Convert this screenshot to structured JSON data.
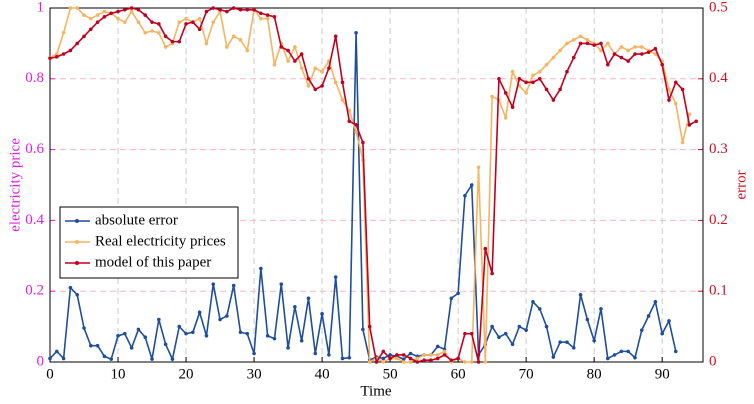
{
  "chart_data": {
    "type": "line",
    "x_label": "Time",
    "y_label": "electricity price",
    "y2_label": "error",
    "x": [
      0,
      1,
      2,
      3,
      4,
      5,
      6,
      7,
      8,
      9,
      10,
      11,
      12,
      13,
      14,
      15,
      16,
      17,
      18,
      19,
      20,
      21,
      22,
      23,
      24,
      25,
      26,
      27,
      28,
      29,
      30,
      31,
      32,
      33,
      34,
      35,
      36,
      37,
      38,
      39,
      40,
      41,
      42,
      43,
      44,
      45,
      46,
      47,
      48,
      49,
      50,
      51,
      52,
      53,
      54,
      55,
      56,
      57,
      58,
      59,
      60,
      61,
      62,
      63,
      64,
      65,
      66,
      67,
      68,
      69,
      70,
      71,
      72,
      73,
      74,
      75,
      76,
      77,
      78,
      79,
      80,
      81,
      82,
      83,
      84,
      85,
      86,
      87,
      88,
      89,
      90,
      91,
      92,
      93,
      94,
      95
    ],
    "xlim": [
      0,
      96
    ],
    "xticks": [
      0,
      10,
      20,
      30,
      40,
      50,
      60,
      70,
      80,
      90
    ],
    "ylim": [
      0,
      1
    ],
    "yticks": [
      0,
      0.2,
      0.4,
      0.6,
      0.8,
      1
    ],
    "y2lim": [
      0,
      0.5
    ],
    "y2ticks": [
      0,
      0.1,
      0.2,
      0.3,
      0.4,
      0.5
    ],
    "grid": true,
    "legend": "center left",
    "series": [
      {
        "name": "absolute error",
        "color": "#1f4e9c",
        "axis": "y2",
        "values": [
          0.005,
          0.015,
          0.005,
          0.105,
          0.095,
          0.048,
          0.023,
          0.023,
          0.008,
          0.004,
          0.037,
          0.04,
          0.02,
          0.046,
          0.035,
          0.004,
          0.06,
          0.025,
          0.004,
          0.05,
          0.04,
          0.042,
          0.07,
          0.037,
          0.11,
          0.06,
          0.065,
          0.108,
          0.042,
          0.04,
          0.012,
          0.132,
          0.037,
          0.033,
          0.11,
          0.02,
          0.078,
          0.03,
          0.09,
          0.012,
          0.068,
          0.01,
          0.12,
          0.005,
          0.006,
          0.465,
          0.046,
          0.003,
          0.007,
          0.005,
          0.01,
          0.008,
          0.004,
          0.012,
          0.008,
          0.01,
          0.01,
          0.022,
          0.018,
          0.09,
          0.097,
          0.235,
          0.25,
          0.01,
          0.025,
          0.05,
          0.035,
          0.04,
          0.025,
          0.05,
          0.045,
          0.085,
          0.075,
          0.05,
          0.007,
          0.028,
          0.028,
          0.02,
          0.095,
          0.06,
          0.03,
          0.075,
          0.005,
          0.01,
          0.015,
          0.015,
          0.006,
          0.045,
          0.065,
          0.085,
          0.04,
          0.058,
          0.015,
          null,
          null,
          null
        ]
      },
      {
        "name": "Real electricity prices",
        "color": "#f5b461",
        "values": [
          0.86,
          0.87,
          0.93,
          1.0,
          1.0,
          0.98,
          0.97,
          0.98,
          0.99,
          0.985,
          0.97,
          0.96,
          0.99,
          0.96,
          0.93,
          0.935,
          0.93,
          0.89,
          0.9,
          0.96,
          0.97,
          0.96,
          0.97,
          0.9,
          0.96,
          0.99,
          0.89,
          0.92,
          0.91,
          0.88,
          0.995,
          0.97,
          0.97,
          0.84,
          0.9,
          0.85,
          0.89,
          0.83,
          0.78,
          0.83,
          0.82,
          0.85,
          0.79,
          0.74,
          0.71,
          0.65,
          0.57,
          0.0,
          0.01,
          0.0,
          0.01,
          0.01,
          0.0,
          0.0,
          0.01,
          0.02,
          0.02,
          0.02,
          0.03,
          0.0,
          0.01,
          0.0,
          0.0,
          0.55,
          0.0,
          0.75,
          0.74,
          0.69,
          0.82,
          0.78,
          0.76,
          0.81,
          0.82,
          0.84,
          0.86,
          0.88,
          0.9,
          0.91,
          0.92,
          0.91,
          0.9,
          0.88,
          0.9,
          0.87,
          0.89,
          0.88,
          0.89,
          0.89,
          0.88,
          0.87,
          0.85,
          0.77,
          0.73,
          0.62,
          0.7,
          null
        ]
      },
      {
        "name": "model of this paper",
        "color": "#c00020",
        "values": [
          0.858,
          0.862,
          0.87,
          0.88,
          0.9,
          0.92,
          0.94,
          0.96,
          0.975,
          0.985,
          0.99,
          0.995,
          1.0,
          0.995,
          0.98,
          0.96,
          0.955,
          0.92,
          0.905,
          0.905,
          0.955,
          0.96,
          0.94,
          0.99,
          1.0,
          0.995,
          0.99,
          1.0,
          0.995,
          0.995,
          0.995,
          0.985,
          0.98,
          0.975,
          0.89,
          0.88,
          0.85,
          0.87,
          0.8,
          0.77,
          0.78,
          0.83,
          0.92,
          0.79,
          0.68,
          0.67,
          0.62,
          0.1,
          0.0,
          0.03,
          0.01,
          0.02,
          0.02,
          0.01,
          0.0,
          0.005,
          0.005,
          0.01,
          0.02,
          0.005,
          0.01,
          0.08,
          0.08,
          0.0,
          0.32,
          0.25,
          0.8,
          0.76,
          0.72,
          0.8,
          0.79,
          0.79,
          0.8,
          0.77,
          0.74,
          0.77,
          0.82,
          0.86,
          0.9,
          0.9,
          0.895,
          0.9,
          0.84,
          0.87,
          0.86,
          0.85,
          0.87,
          0.87,
          0.875,
          0.885,
          0.84,
          0.74,
          0.79,
          0.77,
          0.67,
          0.68
        ]
      }
    ]
  }
}
